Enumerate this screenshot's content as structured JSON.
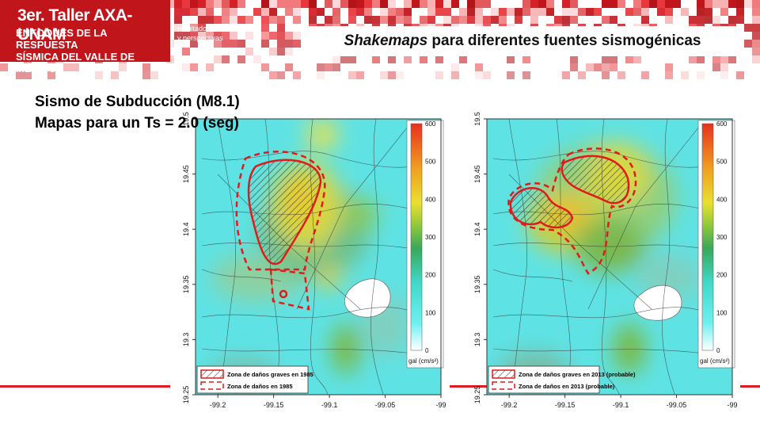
{
  "header": {
    "brand_title": "3er. Taller AXA-UNAM",
    "brand_line1": "ENFOQUES DE LA RESPUESTA",
    "brand_line2": "SÍSMICA DEL VALLE DE MÉXICO",
    "tagline_line1": "resultados recientes",
    "tagline_line2": "y perspectivas",
    "slide_title_em": "Shakemaps",
    "slide_title_rest": " para diferentes fuentes sismogénicas",
    "colors": {
      "brand_red": "#c0161b",
      "accent_red": "#e01b22"
    }
  },
  "subtitle": {
    "line1": "Sismo de Subducción (M8.1)",
    "line2": "Mapas para un Ts = 2.0 (seg)"
  },
  "chart_data": [
    {
      "type": "heatmap",
      "title": "",
      "xlabel": "",
      "ylabel": "",
      "x_ticks": [
        "-99.2",
        "-99.15",
        "-99.1",
        "-99.05",
        "-99"
      ],
      "y_ticks": [
        "19.5",
        "19.45",
        "19.4",
        "19.35",
        "19.3",
        "19.25"
      ],
      "xlim": [
        -99.22,
        -99.0
      ],
      "ylim": [
        19.25,
        19.5
      ],
      "colorbar": {
        "label": "gal (cm/s²)",
        "ticks": [
          "600",
          "500",
          "400",
          "300",
          "200",
          "100",
          "0"
        ],
        "range": [
          0,
          600
        ]
      },
      "legend": [
        {
          "label": "Zona de daños graves en 1985",
          "style": "hatched"
        },
        {
          "label": "Zona de daños en 1985",
          "style": "dashed"
        }
      ],
      "legend_position": "bottom-left"
    },
    {
      "type": "heatmap",
      "title": "",
      "xlabel": "",
      "ylabel": "",
      "x_ticks": [
        "-99.2",
        "-99.15",
        "-99.1",
        "-99.05",
        "-99"
      ],
      "y_ticks": [
        "19.5",
        "19.45",
        "19.4",
        "19.35",
        "19.3",
        "19.25"
      ],
      "xlim": [
        -99.22,
        -99.0
      ],
      "ylim": [
        19.25,
        19.5
      ],
      "colorbar": {
        "label": "gal (cm/s²)",
        "ticks": [
          "600",
          "500",
          "400",
          "300",
          "200",
          "100",
          "0"
        ],
        "range": [
          0,
          600
        ]
      },
      "legend": [
        {
          "label": "Zona de daños graves en 2013 (probable)",
          "style": "hatched"
        },
        {
          "label": "Zona de daños en 2013 (probable)",
          "style": "dashed"
        }
      ],
      "legend_position": "bottom-left"
    }
  ]
}
